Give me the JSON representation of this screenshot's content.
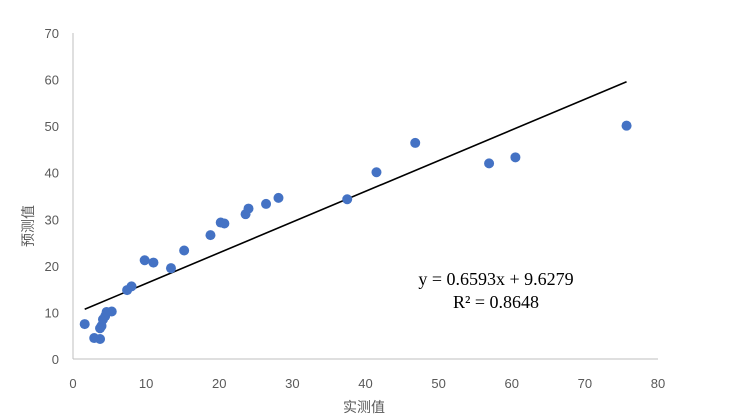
{
  "chart_data": {
    "type": "scatter",
    "title": "",
    "xlabel": "实测值",
    "ylabel": "预测值",
    "xlim": [
      0,
      80
    ],
    "ylim": [
      0,
      70
    ],
    "x_ticks": [
      0,
      10,
      20,
      30,
      40,
      50,
      60,
      70,
      80
    ],
    "y_ticks": [
      0,
      10,
      20,
      30,
      40,
      50,
      60,
      70
    ],
    "grid": false,
    "legend": "none",
    "marker_color": "#4472C4",
    "points": [
      {
        "x": 1.6,
        "y": 7.5
      },
      {
        "x": 2.9,
        "y": 4.5
      },
      {
        "x": 3.7,
        "y": 4.3
      },
      {
        "x": 3.7,
        "y": 6.6
      },
      {
        "x": 3.9,
        "y": 7.1
      },
      {
        "x": 4.1,
        "y": 8.5
      },
      {
        "x": 4.4,
        "y": 9.2
      },
      {
        "x": 4.6,
        "y": 10.1
      },
      {
        "x": 5.3,
        "y": 10.2
      },
      {
        "x": 7.4,
        "y": 14.8
      },
      {
        "x": 8.0,
        "y": 15.6
      },
      {
        "x": 9.8,
        "y": 21.2
      },
      {
        "x": 11.0,
        "y": 20.7
      },
      {
        "x": 13.4,
        "y": 19.5
      },
      {
        "x": 15.2,
        "y": 23.3
      },
      {
        "x": 18.8,
        "y": 26.6
      },
      {
        "x": 20.2,
        "y": 29.3
      },
      {
        "x": 20.7,
        "y": 29.1
      },
      {
        "x": 23.6,
        "y": 31.1
      },
      {
        "x": 24.0,
        "y": 32.3
      },
      {
        "x": 26.4,
        "y": 33.3
      },
      {
        "x": 28.1,
        "y": 34.6
      },
      {
        "x": 37.5,
        "y": 34.3
      },
      {
        "x": 41.5,
        "y": 40.1
      },
      {
        "x": 46.8,
        "y": 46.4
      },
      {
        "x": 56.9,
        "y": 42.0
      },
      {
        "x": 60.5,
        "y": 43.3
      },
      {
        "x": 75.7,
        "y": 50.1
      }
    ],
    "trendline": {
      "type": "linear",
      "slope": 0.6593,
      "intercept": 9.6279,
      "x_range": [
        1.6,
        75.7
      ],
      "color": "#000000",
      "equation_text": "y = 0.6593x + 9.6279",
      "r2_text": "R² = 0.8648"
    }
  }
}
